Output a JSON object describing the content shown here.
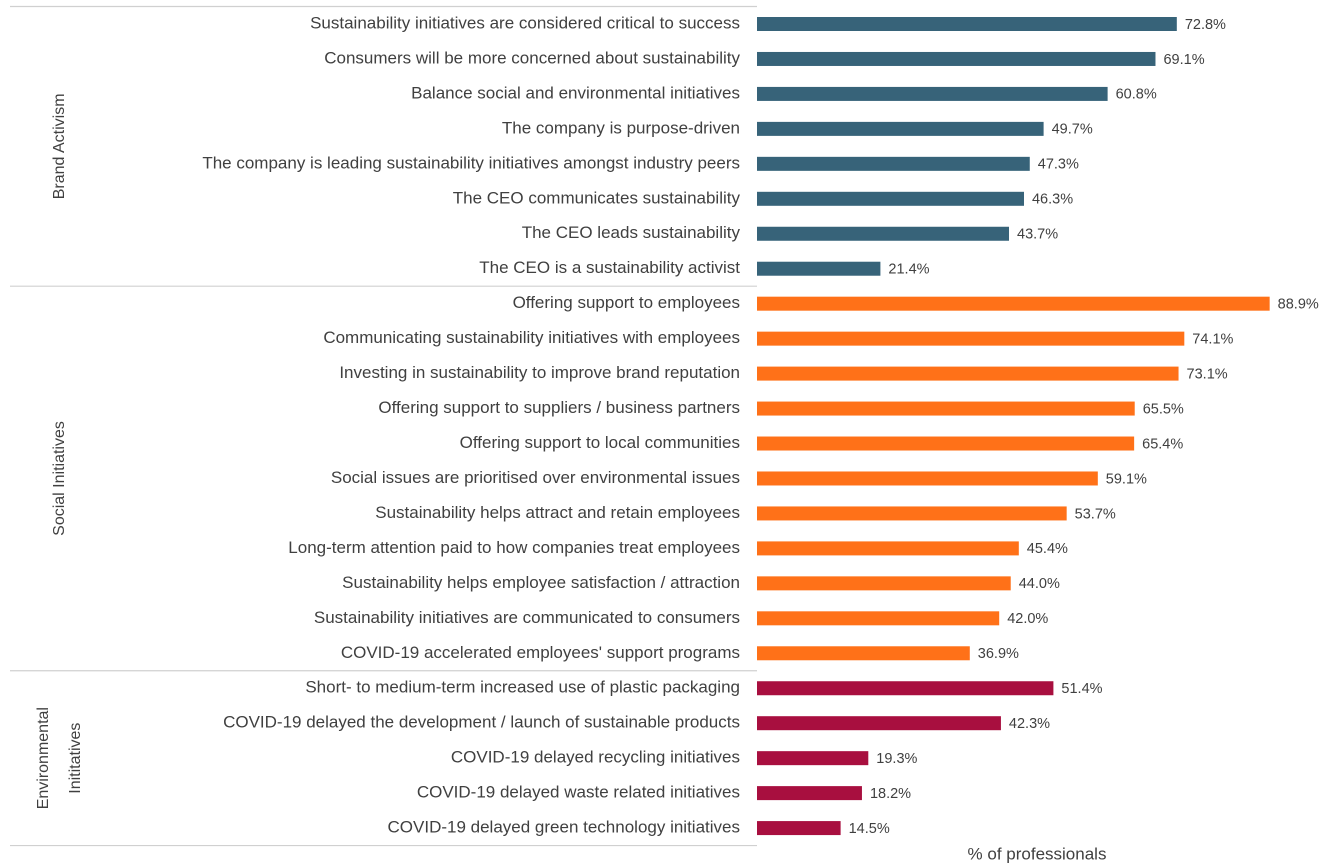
{
  "chart_data": {
    "type": "bar",
    "orientation": "horizontal",
    "xlabel": "% of professionals",
    "xlim": [
      0,
      90
    ],
    "groups": [
      {
        "name_lines": [
          "Brand Activism"
        ],
        "color": "#376379",
        "categories": [
          "Sustainability initiatives are considered critical to success",
          "Consumers will be more concerned about sustainability",
          "Balance social and environmental initiatives",
          "The company is purpose-driven",
          "The company is leading sustainability initiatives amongst industry peers",
          "The CEO communicates sustainability",
          "The CEO leads sustainability",
          "The CEO is a sustainability activist"
        ],
        "values": [
          72.8,
          69.1,
          60.8,
          49.7,
          47.3,
          46.3,
          43.7,
          21.4
        ],
        "value_labels": [
          "72.8%",
          "69.1%",
          "60.8%",
          "49.7%",
          "47.3%",
          "46.3%",
          "43.7%",
          "21.4%"
        ]
      },
      {
        "name_lines": [
          "Social Initiatives"
        ],
        "color": "#ff7118",
        "categories": [
          "Offering support to employees",
          "Communicating sustainability initiatives with employees",
          "Investing in sustainability to improve brand reputation",
          "Offering support to suppliers / business partners",
          "Offering support to local communities",
          "Social issues are prioritised over environmental issues",
          "Sustainability helps attract and retain employees",
          "Long-term attention paid to how companies treat employees",
          "Sustainability helps employee satisfaction / attraction",
          "Sustainability initiatives are communicated to consumers",
          "COVID-19 accelerated employees' support programs"
        ],
        "values": [
          88.9,
          74.1,
          73.1,
          65.5,
          65.4,
          59.1,
          53.7,
          45.4,
          44.0,
          42.0,
          36.9
        ],
        "value_labels": [
          "88.9%",
          "74.1%",
          "73.1%",
          "65.5%",
          "65.4%",
          "59.1%",
          "53.7%",
          "45.4%",
          "44.0%",
          "42.0%",
          "36.9%"
        ]
      },
      {
        "name_lines": [
          "Environmental",
          "Inititatives"
        ],
        "color": "#a80f3f",
        "categories": [
          "Short- to medium-term increased use of plastic packaging",
          "COVID-19 delayed the development / launch of sustainable products",
          "COVID-19 delayed recycling initiatives",
          "COVID-19 delayed waste related initiatives",
          "COVID-19 delayed green technology initiatives"
        ],
        "values": [
          51.4,
          42.3,
          19.3,
          18.2,
          14.5
        ],
        "value_labels": [
          "51.4%",
          "42.3%",
          "19.3%",
          "18.2%",
          "14.5%"
        ]
      }
    ]
  }
}
